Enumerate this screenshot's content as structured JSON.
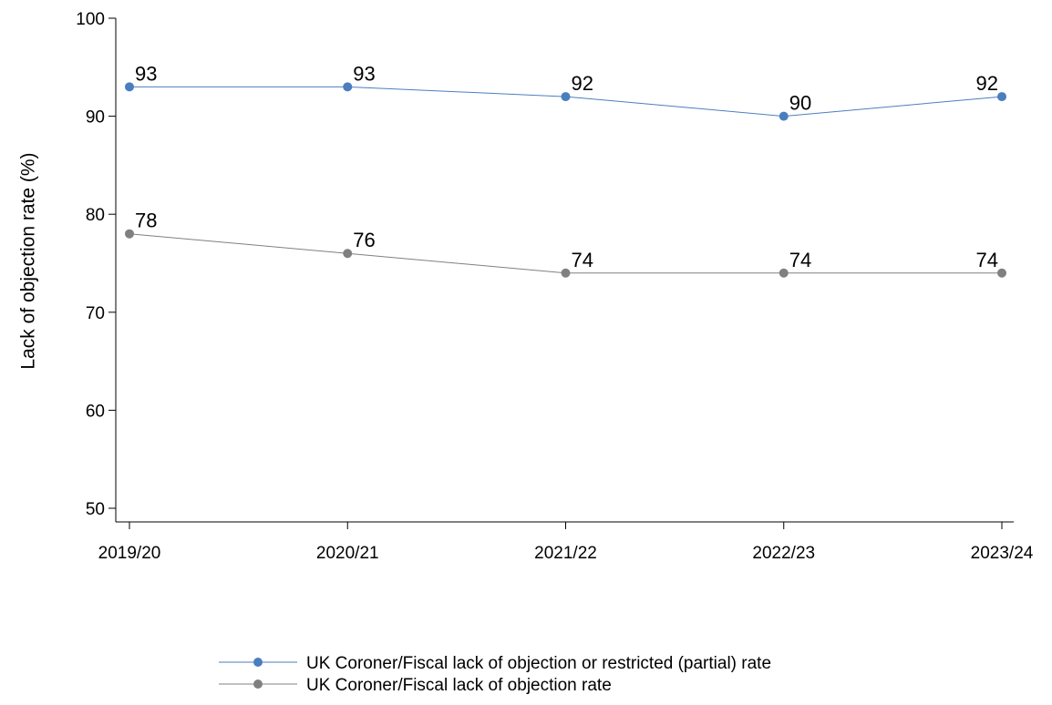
{
  "chart_data": {
    "type": "line",
    "title": "",
    "xlabel": "",
    "ylabel": "Lack of objection rate (%)",
    "categories": [
      "2019/20",
      "2020/21",
      "2021/22",
      "2022/23",
      "2023/24"
    ],
    "ylim": [
      50,
      100
    ],
    "yticks": [
      50,
      60,
      70,
      80,
      90,
      100
    ],
    "grid": false,
    "legend_position": "bottom",
    "series": [
      {
        "name": "UK Coroner/Fiscal lack of objection or restricted (partial) rate",
        "values": [
          93,
          93,
          92,
          90,
          92
        ],
        "color": "#4a7ebf"
      },
      {
        "name": "UK Coroner/Fiscal lack of objection rate",
        "values": [
          78,
          76,
          74,
          74,
          74
        ],
        "color": "#808080"
      }
    ]
  }
}
